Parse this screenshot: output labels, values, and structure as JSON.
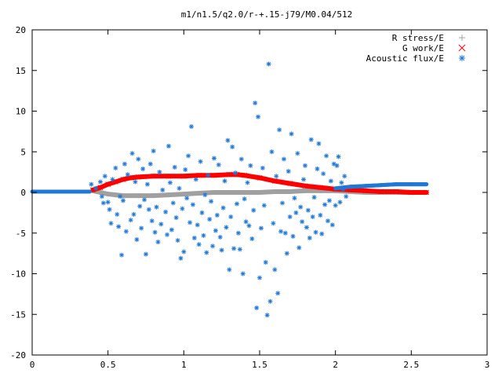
{
  "chart_data": {
    "type": "scatter",
    "title": "m1/n1.5/q2.0/r-+.15-j79/M0.04/512",
    "xlabel": "",
    "ylabel": "",
    "xlim": [
      0,
      3
    ],
    "ylim": [
      -20,
      20
    ],
    "x_ticks": [
      "0",
      "0.5",
      "1",
      "1.5",
      "2",
      "2.5",
      "3"
    ],
    "x_tick_values": [
      0,
      0.5,
      1,
      1.5,
      2,
      2.5,
      3
    ],
    "y_ticks": [
      "-20",
      "-15",
      "-10",
      "-5",
      "0",
      "5",
      "10",
      "15",
      "20"
    ],
    "y_tick_values": [
      -20,
      -15,
      -10,
      -5,
      0,
      5,
      10,
      15,
      20
    ],
    "grid": false,
    "legend_position": "top-right",
    "series": [
      {
        "name": "R stress/E",
        "marker": "plus",
        "color": "#a0a0a0",
        "points": [
          [
            0.4,
            0.2
          ],
          [
            0.45,
            0.0
          ],
          [
            0.5,
            -0.2
          ],
          [
            0.55,
            -0.3
          ],
          [
            0.6,
            -0.4
          ],
          [
            0.7,
            -0.4
          ],
          [
            0.8,
            -0.4
          ],
          [
            0.9,
            -0.3
          ],
          [
            1.0,
            -0.2
          ],
          [
            1.1,
            -0.1
          ],
          [
            1.2,
            0.0
          ],
          [
            1.3,
            0.0
          ],
          [
            1.4,
            0.0
          ],
          [
            1.5,
            0.0
          ],
          [
            1.6,
            0.1
          ],
          [
            1.7,
            0.1
          ],
          [
            1.8,
            0.2
          ],
          [
            1.9,
            0.2
          ],
          [
            2.0,
            0.2
          ],
          [
            2.1,
            0.1
          ],
          [
            2.2,
            0.0
          ],
          [
            2.3,
            0.0
          ],
          [
            2.4,
            0.0
          ],
          [
            2.5,
            0.0
          ],
          [
            2.6,
            0.0
          ]
        ]
      },
      {
        "name": "G work/E",
        "marker": "cross",
        "color": "#ff0000",
        "points": [
          [
            0.4,
            0.3
          ],
          [
            0.45,
            0.6
          ],
          [
            0.5,
            1.0
          ],
          [
            0.55,
            1.3
          ],
          [
            0.6,
            1.6
          ],
          [
            0.65,
            1.8
          ],
          [
            0.7,
            1.9
          ],
          [
            0.8,
            2.0
          ],
          [
            0.9,
            2.0
          ],
          [
            1.0,
            2.0
          ],
          [
            1.1,
            2.1
          ],
          [
            1.2,
            2.1
          ],
          [
            1.3,
            2.2
          ],
          [
            1.35,
            2.2
          ],
          [
            1.4,
            2.1
          ],
          [
            1.5,
            1.8
          ],
          [
            1.6,
            1.4
          ],
          [
            1.7,
            1.1
          ],
          [
            1.8,
            0.8
          ],
          [
            1.9,
            0.6
          ],
          [
            2.0,
            0.4
          ],
          [
            2.1,
            0.3
          ],
          [
            2.2,
            0.2
          ],
          [
            2.3,
            0.1
          ],
          [
            2.4,
            0.1
          ],
          [
            2.5,
            0.0
          ],
          [
            2.6,
            0.0
          ]
        ]
      },
      {
        "name": "Acoustic flux/E",
        "marker": "star",
        "color": "#1f78d8",
        "line_points": [
          [
            0.0,
            0.1
          ],
          [
            0.1,
            0.1
          ],
          [
            0.2,
            0.1
          ],
          [
            0.3,
            0.1
          ],
          [
            0.38,
            0.1
          ],
          [
            2.0,
            0.5
          ],
          [
            2.1,
            0.7
          ],
          [
            2.2,
            0.8
          ],
          [
            2.3,
            0.9
          ],
          [
            2.4,
            1.0
          ],
          [
            2.5,
            1.0
          ],
          [
            2.6,
            1.0
          ]
        ],
        "points": [
          [
            0.39,
            1.0
          ],
          [
            0.42,
            0.5
          ],
          [
            0.45,
            1.3
          ],
          [
            0.46,
            -0.5
          ],
          [
            0.47,
            -1.3
          ],
          [
            0.48,
            2.0
          ],
          [
            0.5,
            -1.2
          ],
          [
            0.51,
            -2.1
          ],
          [
            0.52,
            -3.8
          ],
          [
            0.53,
            1.6
          ],
          [
            0.55,
            3.0
          ],
          [
            0.56,
            -2.7
          ],
          [
            0.57,
            -4.2
          ],
          [
            0.58,
            -0.5
          ],
          [
            0.59,
            -7.7
          ],
          [
            0.6,
            -1.0
          ],
          [
            0.61,
            3.5
          ],
          [
            0.62,
            -4.8
          ],
          [
            0.63,
            2.2
          ],
          [
            0.65,
            -3.4
          ],
          [
            0.66,
            4.8
          ],
          [
            0.67,
            -2.7
          ],
          [
            0.68,
            1.3
          ],
          [
            0.69,
            -5.8
          ],
          [
            0.7,
            4.1
          ],
          [
            0.71,
            -1.7
          ],
          [
            0.72,
            -4.4
          ],
          [
            0.73,
            2.9
          ],
          [
            0.74,
            -0.9
          ],
          [
            0.75,
            -7.6
          ],
          [
            0.76,
            1.0
          ],
          [
            0.77,
            -2.1
          ],
          [
            0.78,
            3.5
          ],
          [
            0.79,
            -3.5
          ],
          [
            0.8,
            5.1
          ],
          [
            0.81,
            -4.9
          ],
          [
            0.82,
            -1.8
          ],
          [
            0.83,
            -6.1
          ],
          [
            0.84,
            2.5
          ],
          [
            0.85,
            -3.9
          ],
          [
            0.86,
            0.3
          ],
          [
            0.88,
            -2.4
          ],
          [
            0.89,
            -5.2
          ],
          [
            0.9,
            5.7
          ],
          [
            0.91,
            1.2
          ],
          [
            0.92,
            -4.6
          ],
          [
            0.93,
            -1.3
          ],
          [
            0.94,
            3.1
          ],
          [
            0.95,
            -3.1
          ],
          [
            0.96,
            -5.9
          ],
          [
            0.97,
            0.5
          ],
          [
            0.98,
            -8.1
          ],
          [
            0.99,
            -2.0
          ],
          [
            1.0,
            -7.3
          ],
          [
            1.01,
            2.8
          ],
          [
            1.02,
            -0.7
          ],
          [
            1.03,
            4.5
          ],
          [
            1.04,
            -3.7
          ],
          [
            1.05,
            8.1
          ],
          [
            1.06,
            -1.5
          ],
          [
            1.07,
            -5.6
          ],
          [
            1.08,
            1.6
          ],
          [
            1.09,
            -4.0
          ],
          [
            1.1,
            -6.4
          ],
          [
            1.11,
            3.8
          ],
          [
            1.12,
            -2.5
          ],
          [
            1.13,
            -5.3
          ],
          [
            1.14,
            -0.3
          ],
          [
            1.15,
            -7.4
          ],
          [
            1.16,
            2.1
          ],
          [
            1.17,
            -3.3
          ],
          [
            1.18,
            -1.1
          ],
          [
            1.19,
            -6.6
          ],
          [
            1.2,
            4.2
          ],
          [
            1.21,
            -4.7
          ],
          [
            1.22,
            -2.8
          ],
          [
            1.23,
            3.4
          ],
          [
            1.24,
            -5.5
          ],
          [
            1.25,
            -7.1
          ],
          [
            1.26,
            -1.9
          ],
          [
            1.27,
            1.4
          ],
          [
            1.28,
            -4.3
          ],
          [
            1.29,
            6.4
          ],
          [
            1.3,
            -9.5
          ],
          [
            1.31,
            -3.0
          ],
          [
            1.32,
            5.6
          ],
          [
            1.33,
            -6.9
          ],
          [
            1.34,
            2.4
          ],
          [
            1.35,
            -1.4
          ],
          [
            1.36,
            -5.0
          ],
          [
            1.37,
            -7.0
          ],
          [
            1.38,
            4.1
          ],
          [
            1.39,
            -10.0
          ],
          [
            1.4,
            -0.8
          ],
          [
            1.41,
            -3.6
          ],
          [
            1.42,
            1.2
          ],
          [
            1.43,
            -4.1
          ],
          [
            1.44,
            3.3
          ],
          [
            1.45,
            -5.7
          ],
          [
            1.46,
            -2.2
          ],
          [
            1.47,
            11.0
          ],
          [
            1.48,
            -14.2
          ],
          [
            1.49,
            9.3
          ],
          [
            1.5,
            -10.5
          ],
          [
            1.51,
            -4.4
          ],
          [
            1.52,
            3.0
          ],
          [
            1.53,
            -1.6
          ],
          [
            1.54,
            -8.6
          ],
          [
            1.55,
            -15.1
          ],
          [
            1.56,
            15.8
          ],
          [
            1.57,
            -13.4
          ],
          [
            1.58,
            5.0
          ],
          [
            1.59,
            -3.8
          ],
          [
            1.6,
            -9.5
          ],
          [
            1.61,
            2.0
          ],
          [
            1.62,
            -12.4
          ],
          [
            1.63,
            7.7
          ],
          [
            1.64,
            -4.8
          ],
          [
            1.65,
            -1.3
          ],
          [
            1.66,
            4.1
          ],
          [
            1.67,
            -5.0
          ],
          [
            1.68,
            -7.5
          ],
          [
            1.69,
            2.6
          ],
          [
            1.7,
            -3.0
          ],
          [
            1.71,
            7.2
          ],
          [
            1.72,
            -5.4
          ],
          [
            1.73,
            -0.7
          ],
          [
            1.74,
            -2.5
          ],
          [
            1.75,
            4.8
          ],
          [
            1.76,
            -6.8
          ],
          [
            1.77,
            -1.8
          ],
          [
            1.78,
            -3.6
          ],
          [
            1.79,
            1.6
          ],
          [
            1.8,
            3.3
          ],
          [
            1.81,
            -4.3
          ],
          [
            1.82,
            -2.2
          ],
          [
            1.83,
            -5.6
          ],
          [
            1.84,
            6.5
          ],
          [
            1.85,
            -3.0
          ],
          [
            1.86,
            -0.6
          ],
          [
            1.87,
            -4.9
          ],
          [
            1.88,
            2.9
          ],
          [
            1.89,
            6.0
          ],
          [
            1.9,
            -2.8
          ],
          [
            1.91,
            -5.1
          ],
          [
            1.92,
            2.3
          ],
          [
            1.93,
            -1.5
          ],
          [
            1.94,
            4.5
          ],
          [
            1.95,
            -3.5
          ],
          [
            1.96,
            -1.0
          ],
          [
            1.97,
            1.4
          ],
          [
            1.98,
            -4.0
          ],
          [
            1.99,
            3.5
          ],
          [
            2.0,
            -1.6
          ],
          [
            2.01,
            3.3
          ],
          [
            2.02,
            4.4
          ],
          [
            2.03,
            -1.2
          ],
          [
            2.04,
            1.2
          ],
          [
            2.05,
            0.4
          ],
          [
            2.06,
            2.0
          ],
          [
            2.07,
            -0.5
          ]
        ]
      }
    ]
  }
}
